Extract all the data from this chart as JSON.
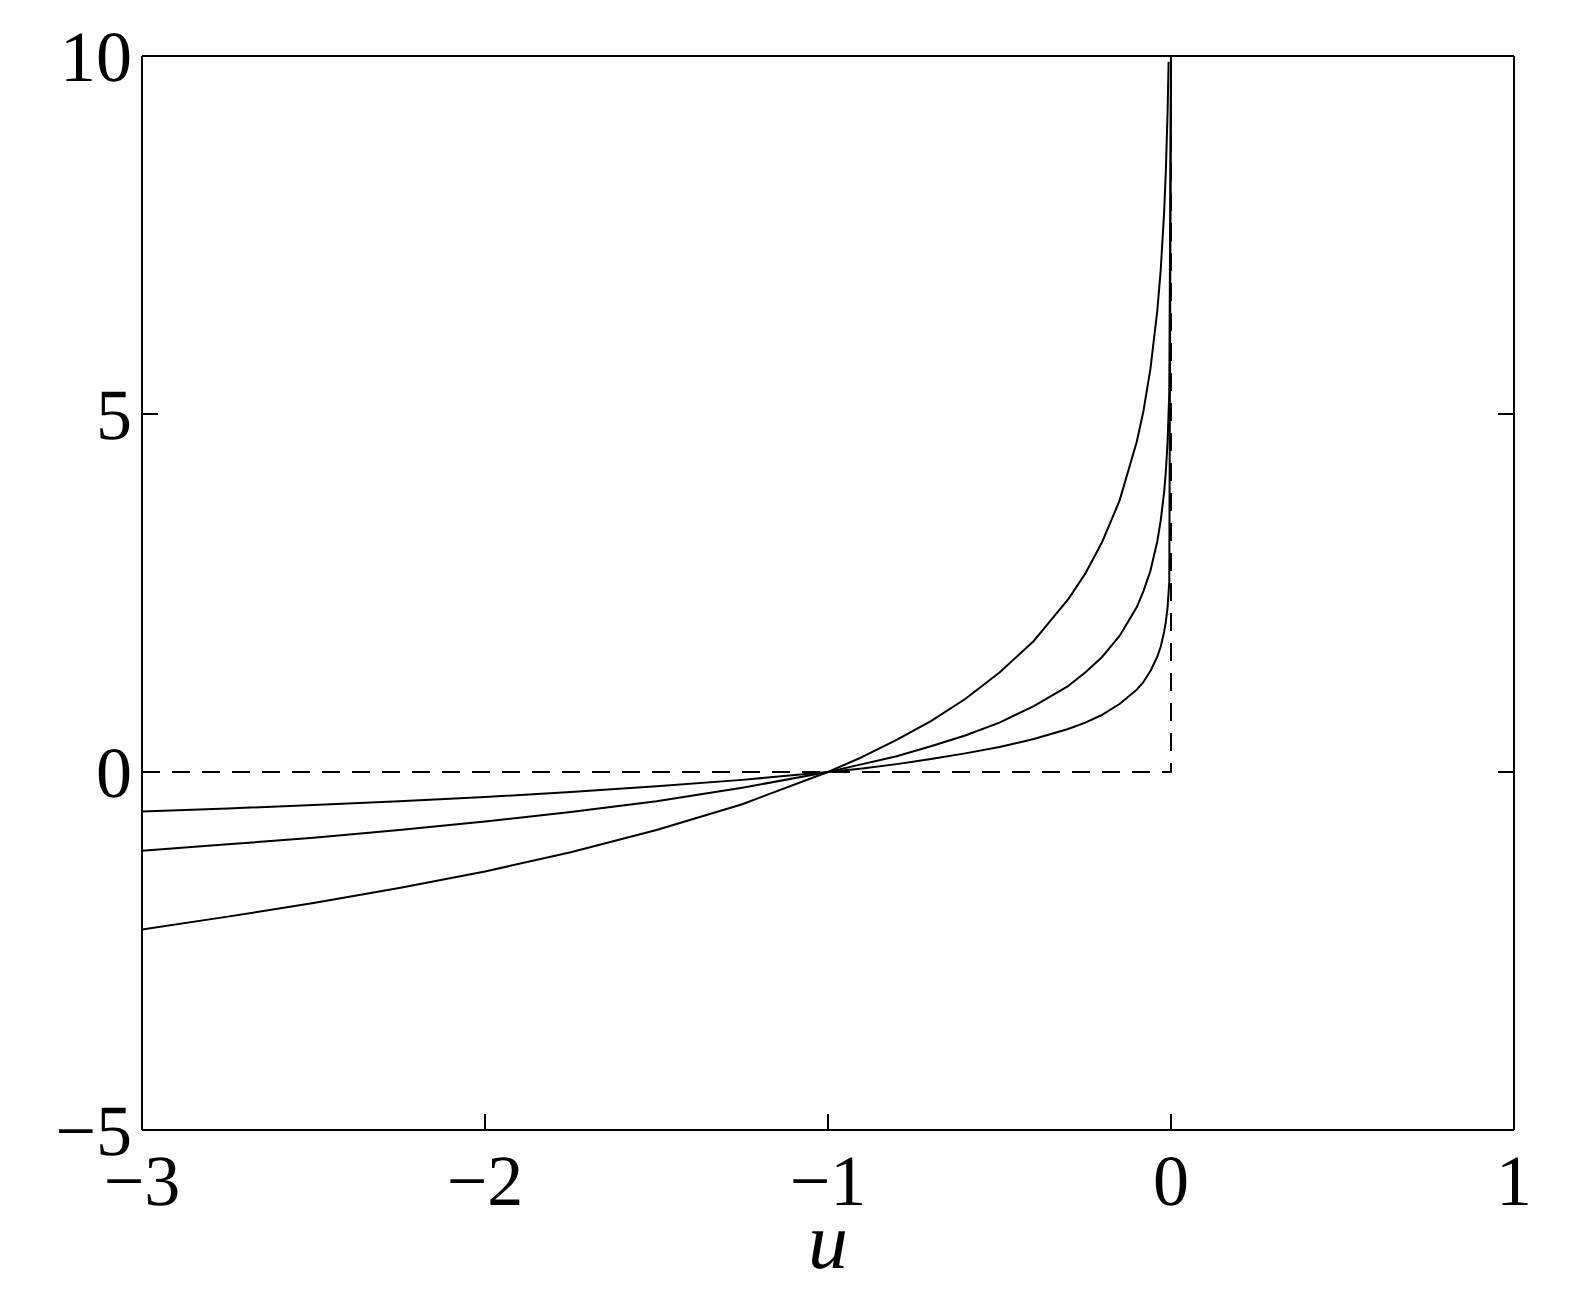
{
  "chart_data": {
    "type": "line",
    "xlabel": "u",
    "xlim": [
      -3,
      1
    ],
    "ylim": [
      -5,
      10
    ],
    "xticks": [
      -3,
      -2,
      -1,
      0,
      1
    ],
    "yticks": [
      -5,
      0,
      5,
      10
    ],
    "series": [
      {
        "color": "#000000",
        "line_style": "solid",
        "x": [
          -3,
          -2.75,
          -2.5,
          -2.25,
          -2,
          -1.75,
          -1.5,
          -1.25,
          -1,
          -0.9,
          -0.8,
          -0.7,
          -0.6,
          -0.5,
          -0.4,
          -0.3,
          -0.25,
          -0.2,
          -0.15,
          -0.1,
          -0.08,
          -0.06,
          -0.04,
          -0.03,
          -0.02,
          -0.015,
          -0.01,
          -0.007
        ],
        "values": [
          -2.2,
          -2.02,
          -1.83,
          -1.62,
          -1.39,
          -1.12,
          -0.81,
          -0.45,
          0,
          0.21,
          0.45,
          0.71,
          1.02,
          1.39,
          1.83,
          2.41,
          2.77,
          3.22,
          3.79,
          4.61,
          5.05,
          5.63,
          6.44,
          7.01,
          7.82,
          8.4,
          9.21,
          9.92
        ]
      },
      {
        "color": "#000000",
        "line_style": "solid",
        "x": [
          -3,
          -2.75,
          -2.5,
          -2.25,
          -2,
          -1.75,
          -1.5,
          -1.25,
          -1,
          -0.9,
          -0.8,
          -0.7,
          -0.6,
          -0.5,
          -0.4,
          -0.3,
          -0.25,
          -0.2,
          -0.15,
          -0.1,
          -0.08,
          -0.06,
          -0.04,
          -0.03,
          -0.02,
          -0.015,
          -0.01,
          -0.005,
          0
        ],
        "values": [
          -1.1,
          -1.01,
          -0.92,
          -0.81,
          -0.69,
          -0.56,
          -0.41,
          -0.22,
          0,
          0.11,
          0.22,
          0.36,
          0.51,
          0.69,
          0.92,
          1.2,
          1.39,
          1.61,
          1.9,
          2.3,
          2.53,
          2.81,
          3.22,
          3.51,
          3.91,
          4.2,
          4.61,
          5.3,
          10
        ]
      },
      {
        "color": "#000000",
        "line_style": "solid",
        "x": [
          -3,
          -2.75,
          -2.5,
          -2.25,
          -2,
          -1.75,
          -1.5,
          -1.25,
          -1,
          -0.9,
          -0.8,
          -0.7,
          -0.6,
          -0.5,
          -0.4,
          -0.3,
          -0.25,
          -0.2,
          -0.15,
          -0.1,
          -0.08,
          -0.06,
          -0.04,
          -0.03,
          -0.02,
          -0.015,
          -0.01,
          -0.005,
          0
        ],
        "values": [
          -0.55,
          -0.51,
          -0.46,
          -0.41,
          -0.35,
          -0.28,
          -0.2,
          -0.11,
          0,
          0.05,
          0.11,
          0.18,
          0.26,
          0.35,
          0.46,
          0.6,
          0.69,
          0.8,
          0.95,
          1.15,
          1.26,
          1.41,
          1.61,
          1.75,
          1.96,
          2.1,
          2.3,
          2.65,
          10
        ]
      },
      {
        "color": "#000000",
        "line_style": "dashed",
        "x": [
          -3,
          0,
          0
        ],
        "values": [
          0,
          0,
          10
        ]
      }
    ]
  }
}
